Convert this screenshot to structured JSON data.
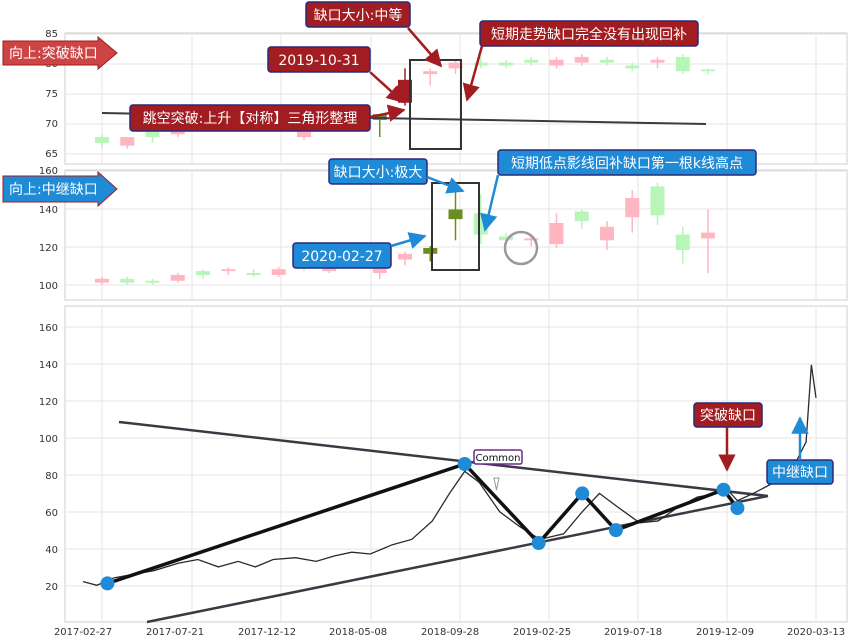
{
  "colors": {
    "up_candle": "#ffb6c1",
    "down_candle": "#b8f5b8",
    "gap_candle_up": "#a11d21",
    "gap_candle_down": "#6b8e23",
    "red_label": "#a11d21",
    "blue_label": "#1f8ad6",
    "line": "#2b2b2b",
    "trend_line": "#3a3a44",
    "zigzag": "#111111",
    "dot": "#1f8ad6",
    "grid": "#e6e6e6"
  },
  "panel1": {
    "arrow_label": "向上:突破缺口",
    "yticks": [
      "85",
      "80",
      "75",
      "70",
      "65"
    ],
    "labels": {
      "gap_size": "缺口大小:中等",
      "date": "2019-10-31",
      "pattern": "跳空突破:上升【对称】三角形整理",
      "note": "短期走势缺口完全没有出现回补"
    }
  },
  "panel2": {
    "arrow_label": "向上:中继缺口",
    "yticks": [
      "160",
      "140",
      "120",
      "100"
    ],
    "labels": {
      "gap_size": "缺口大小:极大",
      "date": "2020-02-27",
      "note": "短期低点影线回补缺口第一根k线高点"
    }
  },
  "panel3": {
    "yticks": [
      "160",
      "140",
      "120",
      "100",
      "80",
      "60",
      "40",
      "20"
    ],
    "xticks": [
      "2017-02-27",
      "2017-07-21",
      "2017-12-12",
      "2018-05-08",
      "2018-09-28",
      "2019-02-25",
      "2019-07-18",
      "2019-12-09",
      "2020-03-13"
    ],
    "labels": {
      "common": "Common",
      "breakout": "突破缺口",
      "relay": "中继缺口"
    }
  },
  "chart_data": [
    {
      "type": "candlestick",
      "ylim": [
        63,
        85
      ],
      "candles": [
        {
          "o": 66,
          "h": 67.5,
          "l": 65,
          "c": 67,
          "up": false
        },
        {
          "o": 65.5,
          "h": 67,
          "l": 65,
          "c": 67,
          "up": true
        },
        {
          "o": 67,
          "h": 69,
          "l": 66,
          "c": 68,
          "up": false
        },
        {
          "o": 68,
          "h": 69,
          "l": 67,
          "c": 67.5,
          "up": true
        },
        {
          "o": 70,
          "h": 71,
          "l": 69,
          "c": 70.5,
          "up": true
        },
        {
          "o": 71,
          "h": 71.5,
          "l": 70,
          "c": 70.5,
          "up": false
        },
        {
          "o": 70,
          "h": 71.5,
          "l": 69,
          "c": 71,
          "up": true
        },
        {
          "o": 71,
          "h": 71.5,
          "l": 68,
          "c": 69,
          "up": false
        },
        {
          "o": 67,
          "h": 69,
          "l": 66.5,
          "c": 68,
          "up": true
        },
        {
          "o": 70,
          "h": 71.5,
          "l": 69.5,
          "c": 71,
          "up": true
        },
        {
          "o": 71,
          "h": 72,
          "l": 70,
          "c": 70.5,
          "up": true
        },
        {
          "o": 70,
          "h": 71,
          "l": 67,
          "c": 71,
          "up": false
        },
        {
          "o": 73,
          "h": 79,
          "l": 72.5,
          "c": 77,
          "up": true
        },
        {
          "o": 78,
          "h": 79,
          "l": 76,
          "c": 78.5,
          "up": true
        },
        {
          "o": 79,
          "h": 80.5,
          "l": 78,
          "c": 80,
          "up": true
        },
        {
          "o": 80,
          "h": 81,
          "l": 79,
          "c": 79.5,
          "up": false
        },
        {
          "o": 80,
          "h": 80.5,
          "l": 79,
          "c": 79.5,
          "up": false
        },
        {
          "o": 80,
          "h": 81,
          "l": 79.5,
          "c": 80.5,
          "up": false
        },
        {
          "o": 79.5,
          "h": 81,
          "l": 79,
          "c": 80.5,
          "up": true
        },
        {
          "o": 80,
          "h": 81.5,
          "l": 79.5,
          "c": 81,
          "up": true
        },
        {
          "o": 80.5,
          "h": 81,
          "l": 79.5,
          "c": 80,
          "up": false
        },
        {
          "o": 79,
          "h": 80,
          "l": 78.5,
          "c": 79.5,
          "up": false
        },
        {
          "o": 80,
          "h": 81,
          "l": 79,
          "c": 80.5,
          "up": true
        },
        {
          "o": 81,
          "h": 81.5,
          "l": 78,
          "c": 78.5,
          "up": false
        },
        {
          "o": 78.5,
          "h": 79,
          "l": 78,
          "c": 78.8,
          "up": false
        }
      ]
    },
    {
      "type": "candlestick",
      "ylim": [
        93,
        160
      ],
      "candles": [
        {
          "o": 102,
          "h": 105,
          "l": 101,
          "c": 104,
          "up": true
        },
        {
          "o": 104,
          "h": 105,
          "l": 101,
          "c": 102,
          "up": false
        },
        {
          "o": 102,
          "h": 104,
          "l": 101,
          "c": 103,
          "up": false
        },
        {
          "o": 103,
          "h": 107,
          "l": 102,
          "c": 106,
          "up": true
        },
        {
          "o": 106,
          "h": 109,
          "l": 104,
          "c": 108,
          "up": false
        },
        {
          "o": 108,
          "h": 110,
          "l": 106,
          "c": 109,
          "up": true
        },
        {
          "o": 107,
          "h": 109,
          "l": 105,
          "c": 106,
          "up": false
        },
        {
          "o": 106,
          "h": 110,
          "l": 105,
          "c": 109,
          "up": true
        },
        {
          "o": 110,
          "h": 114,
          "l": 108,
          "c": 111,
          "up": false
        },
        {
          "o": 108,
          "h": 112,
          "l": 107,
          "c": 111,
          "up": true
        },
        {
          "o": 112,
          "h": 116,
          "l": 110,
          "c": 113,
          "up": true
        },
        {
          "o": 107,
          "h": 114,
          "l": 104,
          "c": 113,
          "up": true
        },
        {
          "o": 114,
          "h": 118,
          "l": 111,
          "c": 117,
          "up": true
        },
        {
          "o": 117,
          "h": 121,
          "l": 113,
          "c": 120,
          "up": false
        },
        {
          "o": 135,
          "h": 152,
          "l": 124,
          "c": 140,
          "up": false
        },
        {
          "o": 138,
          "h": 148,
          "l": 122,
          "c": 127,
          "up": false
        },
        {
          "o": 124,
          "h": 128,
          "l": 122,
          "c": 126,
          "up": false
        },
        {
          "o": 124,
          "h": 127,
          "l": 121,
          "c": 125,
          "up": true
        },
        {
          "o": 122,
          "h": 138,
          "l": 120,
          "c": 133,
          "up": true
        },
        {
          "o": 134,
          "h": 140,
          "l": 130,
          "c": 139,
          "up": false
        },
        {
          "o": 124,
          "h": 134,
          "l": 119,
          "c": 131,
          "up": true
        },
        {
          "o": 136,
          "h": 150,
          "l": 128,
          "c": 146,
          "up": true
        },
        {
          "o": 152,
          "h": 154,
          "l": 132,
          "c": 137,
          "up": false
        },
        {
          "o": 119,
          "h": 131,
          "l": 112,
          "c": 127,
          "up": false
        },
        {
          "o": 125,
          "h": 140,
          "l": 107,
          "c": 128,
          "up": true
        }
      ]
    },
    {
      "type": "line",
      "ylim": [
        0,
        172
      ],
      "series": [
        {
          "x": [
            "2017-02-27",
            "2017-03-20",
            "2017-04-15",
            "2017-05-15",
            "2017-06-15",
            "2017-07-21",
            "2017-08-20",
            "2017-09-20",
            "2017-10-20",
            "2017-11-15",
            "2017-12-12",
            "2018-01-15",
            "2018-02-15",
            "2018-03-15",
            "2018-04-10",
            "2018-05-08",
            "2018-06-10",
            "2018-07-10",
            "2018-08-10",
            "2018-09-05",
            "2018-09-28",
            "2018-10-20",
            "2018-11-20",
            "2018-12-20",
            "2019-01-20",
            "2019-02-25",
            "2019-03-25",
            "2019-04-20",
            "2019-05-20",
            "2019-06-20",
            "2019-07-18",
            "2019-08-15",
            "2019-09-15",
            "2019-10-15",
            "2019-10-31",
            "2019-11-15",
            "2019-12-09",
            "2020-01-10",
            "2020-02-10",
            "2020-02-27",
            "2020-03-06",
            "2020-03-13"
          ],
          "y": [
            22,
            20,
            24,
            26,
            28,
            32,
            34,
            30,
            33,
            30,
            34,
            35,
            33,
            36,
            38,
            37,
            42,
            45,
            55,
            70,
            82,
            76,
            60,
            52,
            45,
            48,
            60,
            70,
            62,
            54,
            55,
            62,
            68,
            70,
            72,
            66,
            70,
            76,
            86,
            98,
            140,
            122
          ]
        }
      ],
      "markers": [
        {
          "date": "2017-04-05",
          "value": 21
        },
        {
          "date": "2018-09-28",
          "value": 86
        },
        {
          "date": "2019-01-18",
          "value": 43
        },
        {
          "date": "2019-03-25",
          "value": 70
        },
        {
          "date": "2019-05-15",
          "value": 50
        },
        {
          "date": "2019-10-25",
          "value": 72
        },
        {
          "date": "2019-11-15",
          "value": 62
        }
      ]
    }
  ]
}
